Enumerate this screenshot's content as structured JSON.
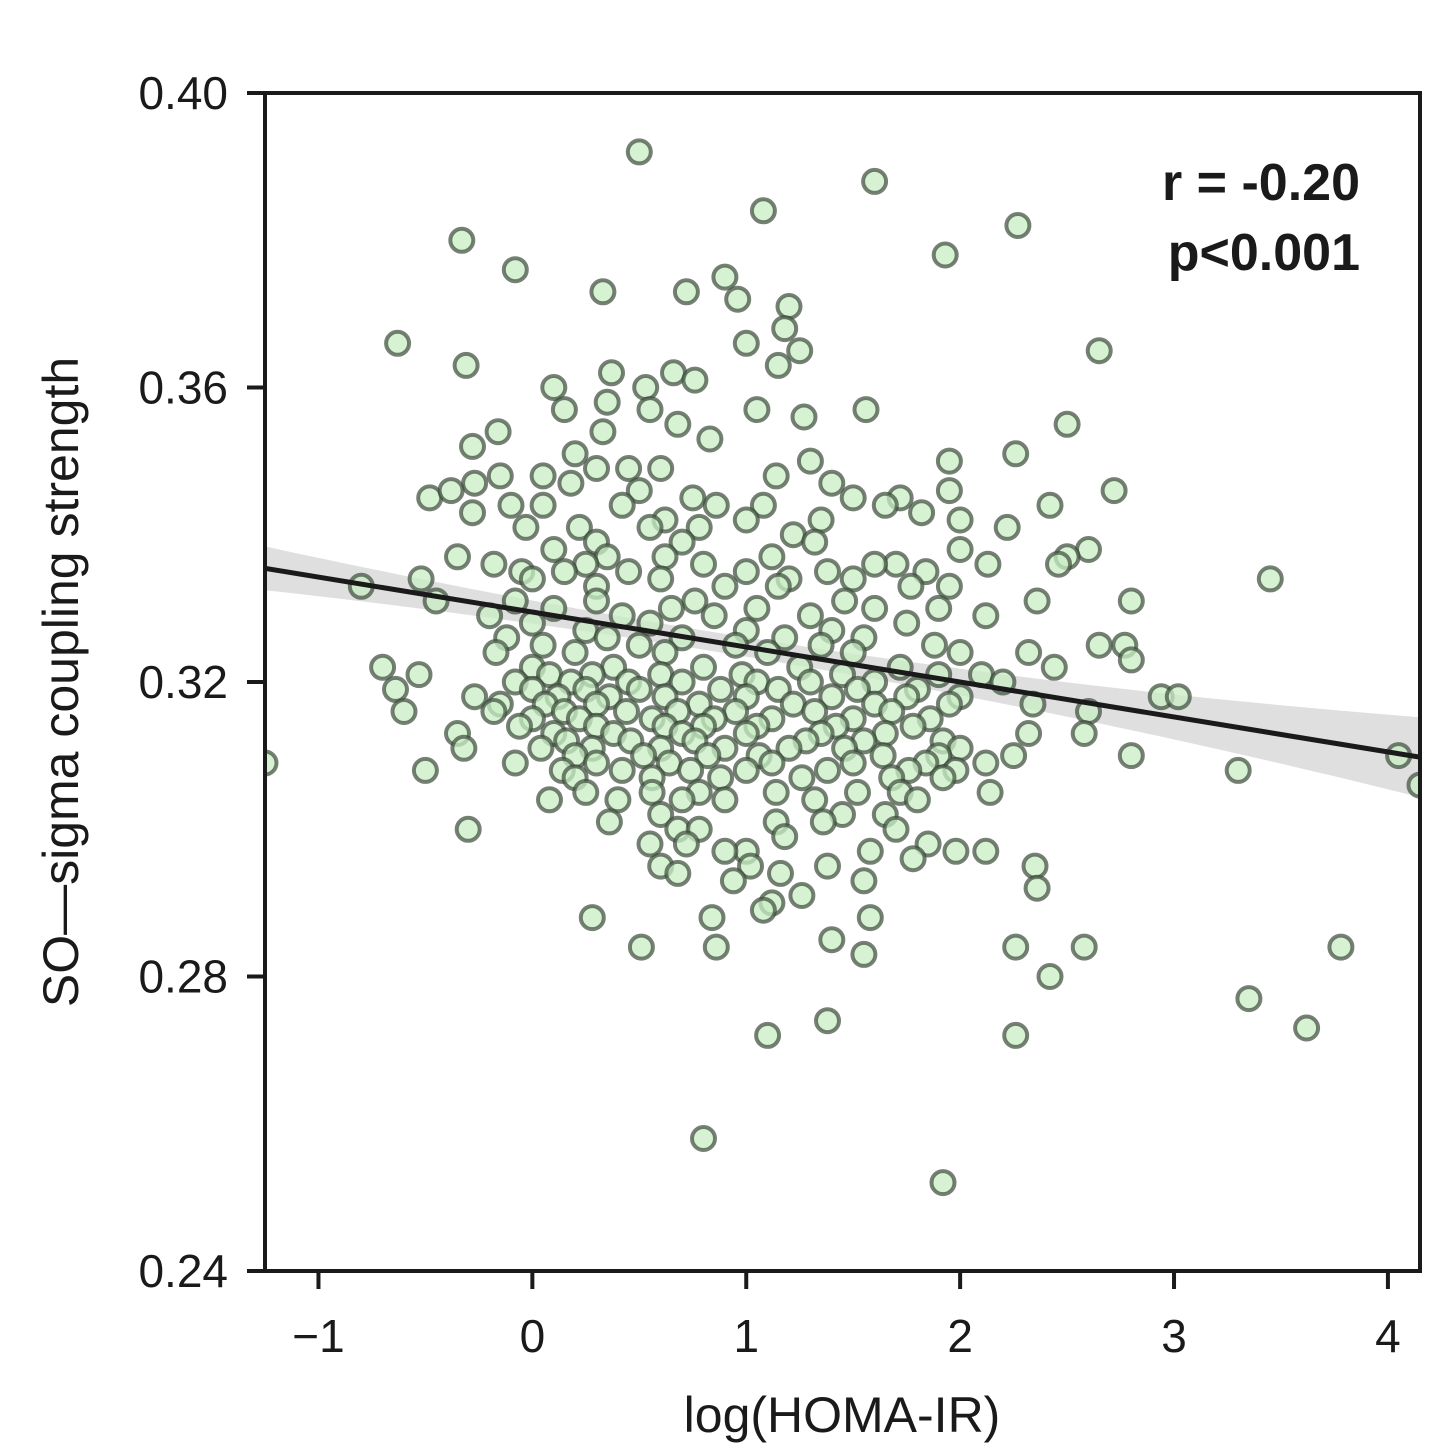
{
  "chart_data": {
    "type": "scatter",
    "title": "",
    "xlabel": "log(HOMA-IR)",
    "ylabel": "SO—sigma coupling strength",
    "xlim": [
      -1.25,
      4.15
    ],
    "ylim": [
      0.24,
      0.4
    ],
    "xticks": [
      -1,
      0,
      1,
      2,
      3,
      4
    ],
    "xtick_labels": [
      "−1",
      "0",
      "1",
      "2",
      "3",
      "4"
    ],
    "yticks": [
      0.24,
      0.28,
      0.32,
      0.36,
      0.4
    ],
    "ytick_labels": [
      "0.24",
      "0.28",
      "0.32",
      "0.36",
      "0.40"
    ],
    "grid": false,
    "marker_fill": "#c8eec4",
    "marker_edge": "#3c4a3a",
    "annotation": {
      "r_text": "r = -0.20",
      "p_text": "p<0.001"
    },
    "regression": {
      "slope": -0.00475,
      "intercept": 0.3295,
      "ci_color": "#d9d9d9",
      "line_color": "#1a1a1a"
    },
    "points": [
      [
        0.5,
        0.392
      ],
      [
        1.6,
        0.388
      ],
      [
        1.08,
        0.384
      ],
      [
        2.27,
        0.382
      ],
      [
        -0.33,
        0.38
      ],
      [
        1.93,
        0.378
      ],
      [
        -0.08,
        0.376
      ],
      [
        0.9,
        0.375
      ],
      [
        0.33,
        0.373
      ],
      [
        0.72,
        0.373
      ],
      [
        0.96,
        0.372
      ],
      [
        1.2,
        0.371
      ],
      [
        1.18,
        0.368
      ],
      [
        -0.63,
        0.366
      ],
      [
        1.0,
        0.366
      ],
      [
        1.25,
        0.365
      ],
      [
        2.65,
        0.365
      ],
      [
        -0.31,
        0.363
      ],
      [
        0.37,
        0.362
      ],
      [
        0.66,
        0.362
      ],
      [
        1.15,
        0.363
      ],
      [
        0.76,
        0.361
      ],
      [
        0.1,
        0.36
      ],
      [
        0.53,
        0.36
      ],
      [
        0.35,
        0.358
      ],
      [
        1.05,
        0.357
      ],
      [
        1.56,
        0.357
      ],
      [
        0.15,
        0.357
      ],
      [
        0.55,
        0.357
      ],
      [
        1.27,
        0.356
      ],
      [
        2.5,
        0.355
      ],
      [
        0.68,
        0.355
      ],
      [
        -0.16,
        0.354
      ],
      [
        0.33,
        0.354
      ],
      [
        0.83,
        0.353
      ],
      [
        -0.28,
        0.352
      ],
      [
        0.2,
        0.351
      ],
      [
        2.26,
        0.351
      ],
      [
        1.95,
        0.35
      ],
      [
        0.45,
        0.349
      ],
      [
        1.3,
        0.35
      ],
      [
        0.6,
        0.349
      ],
      [
        -0.15,
        0.348
      ],
      [
        0.05,
        0.348
      ],
      [
        0.3,
        0.349
      ],
      [
        1.14,
        0.348
      ],
      [
        -0.27,
        0.347
      ],
      [
        0.18,
        0.347
      ],
      [
        0.5,
        0.346
      ],
      [
        1.4,
        0.347
      ],
      [
        1.95,
        0.346
      ],
      [
        2.72,
        0.346
      ],
      [
        -0.48,
        0.345
      ],
      [
        -0.38,
        0.346
      ],
      [
        0.75,
        0.345
      ],
      [
        1.5,
        0.345
      ],
      [
        1.72,
        0.345
      ],
      [
        0.05,
        0.344
      ],
      [
        -0.1,
        0.344
      ],
      [
        0.42,
        0.344
      ],
      [
        0.86,
        0.344
      ],
      [
        1.08,
        0.344
      ],
      [
        1.65,
        0.344
      ],
      [
        2.42,
        0.344
      ],
      [
        -0.28,
        0.343
      ],
      [
        0.62,
        0.342
      ],
      [
        1.0,
        0.342
      ],
      [
        1.35,
        0.342
      ],
      [
        1.82,
        0.343
      ],
      [
        2.0,
        0.342
      ],
      [
        0.22,
        0.341
      ],
      [
        0.55,
        0.341
      ],
      [
        0.78,
        0.341
      ],
      [
        -0.03,
        0.341
      ],
      [
        2.22,
        0.341
      ],
      [
        1.22,
        0.34
      ],
      [
        0.3,
        0.339
      ],
      [
        0.7,
        0.339
      ],
      [
        1.32,
        0.339
      ],
      [
        2.0,
        0.338
      ],
      [
        0.1,
        0.338
      ],
      [
        2.6,
        0.338
      ],
      [
        -0.35,
        0.337
      ],
      [
        0.35,
        0.337
      ],
      [
        0.62,
        0.337
      ],
      [
        1.12,
        0.337
      ],
      [
        1.7,
        0.336
      ],
      [
        2.5,
        0.337
      ],
      [
        -0.18,
        0.336
      ],
      [
        0.25,
        0.336
      ],
      [
        0.8,
        0.336
      ],
      [
        1.6,
        0.336
      ],
      [
        2.46,
        0.336
      ],
      [
        2.13,
        0.336
      ],
      [
        -0.05,
        0.335
      ],
      [
        0.15,
        0.335
      ],
      [
        0.45,
        0.335
      ],
      [
        1.0,
        0.335
      ],
      [
        1.38,
        0.335
      ],
      [
        1.84,
        0.335
      ],
      [
        -0.52,
        0.334
      ],
      [
        0.0,
        0.334
      ],
      [
        0.6,
        0.334
      ],
      [
        1.2,
        0.334
      ],
      [
        1.5,
        0.334
      ],
      [
        3.45,
        0.334
      ],
      [
        -0.8,
        0.333
      ],
      [
        0.3,
        0.333
      ],
      [
        0.9,
        0.333
      ],
      [
        1.15,
        0.333
      ],
      [
        1.77,
        0.333
      ],
      [
        1.95,
        0.333
      ],
      [
        -0.45,
        0.331
      ],
      [
        -0.08,
        0.331
      ],
      [
        0.3,
        0.331
      ],
      [
        0.76,
        0.331
      ],
      [
        1.46,
        0.331
      ],
      [
        2.36,
        0.331
      ],
      [
        2.8,
        0.331
      ],
      [
        0.1,
        0.33
      ],
      [
        0.65,
        0.33
      ],
      [
        1.05,
        0.33
      ],
      [
        1.6,
        0.33
      ],
      [
        1.9,
        0.33
      ],
      [
        -0.2,
        0.329
      ],
      [
        0.42,
        0.329
      ],
      [
        0.85,
        0.329
      ],
      [
        1.3,
        0.329
      ],
      [
        1.75,
        0.328
      ],
      [
        2.12,
        0.329
      ],
      [
        0.0,
        0.328
      ],
      [
        0.55,
        0.328
      ],
      [
        1.0,
        0.327
      ],
      [
        1.4,
        0.327
      ],
      [
        0.25,
        0.327
      ],
      [
        -0.12,
        0.326
      ],
      [
        0.7,
        0.326
      ],
      [
        1.18,
        0.326
      ],
      [
        1.55,
        0.326
      ],
      [
        0.35,
        0.326
      ],
      [
        0.05,
        0.325
      ],
      [
        0.5,
        0.325
      ],
      [
        0.95,
        0.325
      ],
      [
        1.35,
        0.325
      ],
      [
        1.88,
        0.325
      ],
      [
        2.65,
        0.325
      ],
      [
        2.77,
        0.325
      ],
      [
        -0.17,
        0.324
      ],
      [
        0.2,
        0.324
      ],
      [
        0.62,
        0.324
      ],
      [
        1.1,
        0.324
      ],
      [
        1.5,
        0.324
      ],
      [
        2.0,
        0.324
      ],
      [
        2.32,
        0.324
      ],
      [
        -0.7,
        0.322
      ],
      [
        0.0,
        0.322
      ],
      [
        0.38,
        0.322
      ],
      [
        0.8,
        0.322
      ],
      [
        1.25,
        0.322
      ],
      [
        1.72,
        0.322
      ],
      [
        2.44,
        0.322
      ],
      [
        2.8,
        0.323
      ],
      [
        -0.53,
        0.321
      ],
      [
        0.08,
        0.321
      ],
      [
        0.28,
        0.321
      ],
      [
        0.6,
        0.321
      ],
      [
        0.98,
        0.321
      ],
      [
        1.45,
        0.321
      ],
      [
        1.9,
        0.321
      ],
      [
        2.1,
        0.321
      ],
      [
        -0.08,
        0.32
      ],
      [
        0.18,
        0.32
      ],
      [
        0.45,
        0.32
      ],
      [
        0.7,
        0.32
      ],
      [
        1.05,
        0.32
      ],
      [
        1.3,
        0.32
      ],
      [
        1.6,
        0.32
      ],
      [
        2.2,
        0.32
      ],
      [
        -0.64,
        0.319
      ],
      [
        0.0,
        0.319
      ],
      [
        0.25,
        0.319
      ],
      [
        0.5,
        0.319
      ],
      [
        0.88,
        0.319
      ],
      [
        1.15,
        0.319
      ],
      [
        1.52,
        0.319
      ],
      [
        1.8,
        0.319
      ],
      [
        -0.27,
        0.318
      ],
      [
        0.12,
        0.318
      ],
      [
        0.36,
        0.318
      ],
      [
        0.62,
        0.318
      ],
      [
        1.0,
        0.318
      ],
      [
        1.4,
        0.318
      ],
      [
        1.75,
        0.318
      ],
      [
        2.0,
        0.318
      ],
      [
        2.94,
        0.318
      ],
      [
        3.02,
        0.318
      ],
      [
        -0.15,
        0.317
      ],
      [
        0.06,
        0.317
      ],
      [
        0.3,
        0.317
      ],
      [
        0.78,
        0.317
      ],
      [
        1.22,
        0.317
      ],
      [
        1.6,
        0.317
      ],
      [
        2.34,
        0.317
      ],
      [
        1.95,
        0.317
      ],
      [
        -0.6,
        0.316
      ],
      [
        -0.18,
        0.316
      ],
      [
        0.15,
        0.316
      ],
      [
        0.44,
        0.316
      ],
      [
        0.68,
        0.316
      ],
      [
        0.95,
        0.316
      ],
      [
        1.32,
        0.316
      ],
      [
        1.68,
        0.316
      ],
      [
        2.6,
        0.316
      ],
      [
        0.0,
        0.315
      ],
      [
        0.22,
        0.315
      ],
      [
        0.56,
        0.315
      ],
      [
        0.85,
        0.315
      ],
      [
        1.12,
        0.315
      ],
      [
        1.5,
        0.315
      ],
      [
        1.86,
        0.315
      ],
      [
        -0.06,
        0.314
      ],
      [
        0.3,
        0.314
      ],
      [
        0.62,
        0.314
      ],
      [
        0.8,
        0.314
      ],
      [
        1.05,
        0.314
      ],
      [
        1.42,
        0.314
      ],
      [
        1.78,
        0.314
      ],
      [
        -0.35,
        0.313
      ],
      [
        0.1,
        0.313
      ],
      [
        0.38,
        0.313
      ],
      [
        0.7,
        0.313
      ],
      [
        1.0,
        0.313
      ],
      [
        1.35,
        0.313
      ],
      [
        1.65,
        0.313
      ],
      [
        2.32,
        0.313
      ],
      [
        2.58,
        0.313
      ],
      [
        0.16,
        0.312
      ],
      [
        0.46,
        0.312
      ],
      [
        0.76,
        0.312
      ],
      [
        1.28,
        0.312
      ],
      [
        1.55,
        0.312
      ],
      [
        1.92,
        0.312
      ],
      [
        -0.32,
        0.311
      ],
      [
        0.04,
        0.311
      ],
      [
        0.28,
        0.311
      ],
      [
        0.6,
        0.311
      ],
      [
        0.9,
        0.311
      ],
      [
        1.2,
        0.311
      ],
      [
        1.46,
        0.311
      ],
      [
        2.0,
        0.311
      ],
      [
        0.2,
        0.31
      ],
      [
        0.52,
        0.31
      ],
      [
        0.82,
        0.31
      ],
      [
        1.06,
        0.31
      ],
      [
        1.64,
        0.31
      ],
      [
        1.9,
        0.31
      ],
      [
        2.25,
        0.31
      ],
      [
        2.8,
        0.31
      ],
      [
        4.05,
        0.31
      ],
      [
        -1.25,
        0.309
      ],
      [
        -0.08,
        0.309
      ],
      [
        0.3,
        0.309
      ],
      [
        0.64,
        0.309
      ],
      [
        1.12,
        0.309
      ],
      [
        1.5,
        0.309
      ],
      [
        1.84,
        0.309
      ],
      [
        2.12,
        0.309
      ],
      [
        -0.5,
        0.308
      ],
      [
        0.14,
        0.308
      ],
      [
        0.42,
        0.308
      ],
      [
        0.74,
        0.308
      ],
      [
        1.0,
        0.308
      ],
      [
        1.38,
        0.308
      ],
      [
        1.76,
        0.308
      ],
      [
        1.98,
        0.308
      ],
      [
        3.3,
        0.308
      ],
      [
        0.2,
        0.307
      ],
      [
        0.56,
        0.307
      ],
      [
        0.88,
        0.307
      ],
      [
        1.26,
        0.307
      ],
      [
        1.68,
        0.307
      ],
      [
        1.92,
        0.307
      ],
      [
        0.25,
        0.305
      ],
      [
        0.56,
        0.305
      ],
      [
        0.78,
        0.305
      ],
      [
        1.14,
        0.305
      ],
      [
        1.52,
        0.305
      ],
      [
        1.72,
        0.305
      ],
      [
        2.14,
        0.305
      ],
      [
        4.15,
        0.306
      ],
      [
        0.08,
        0.304
      ],
      [
        0.4,
        0.304
      ],
      [
        0.7,
        0.304
      ],
      [
        0.9,
        0.304
      ],
      [
        1.32,
        0.304
      ],
      [
        1.8,
        0.304
      ],
      [
        0.6,
        0.302
      ],
      [
        1.45,
        0.302
      ],
      [
        1.65,
        0.302
      ],
      [
        0.36,
        0.301
      ],
      [
        0.68,
        0.3
      ],
      [
        1.14,
        0.301
      ],
      [
        -0.3,
        0.3
      ],
      [
        0.78,
        0.3
      ],
      [
        1.36,
        0.301
      ],
      [
        1.7,
        0.3
      ],
      [
        1.18,
        0.299
      ],
      [
        0.55,
        0.298
      ],
      [
        0.72,
        0.298
      ],
      [
        1.0,
        0.297
      ],
      [
        1.85,
        0.298
      ],
      [
        1.98,
        0.297
      ],
      [
        2.12,
        0.297
      ],
      [
        0.9,
        0.297
      ],
      [
        1.58,
        0.297
      ],
      [
        1.78,
        0.296
      ],
      [
        0.6,
        0.295
      ],
      [
        1.02,
        0.295
      ],
      [
        1.38,
        0.295
      ],
      [
        2.35,
        0.295
      ],
      [
        0.68,
        0.294
      ],
      [
        0.94,
        0.293
      ],
      [
        1.16,
        0.294
      ],
      [
        1.55,
        0.293
      ],
      [
        2.36,
        0.292
      ],
      [
        1.12,
        0.29
      ],
      [
        1.26,
        0.291
      ],
      [
        1.08,
        0.289
      ],
      [
        0.28,
        0.288
      ],
      [
        0.84,
        0.288
      ],
      [
        1.58,
        0.288
      ],
      [
        0.51,
        0.284
      ],
      [
        0.86,
        0.284
      ],
      [
        1.4,
        0.285
      ],
      [
        1.55,
        0.283
      ],
      [
        2.26,
        0.284
      ],
      [
        2.58,
        0.284
      ],
      [
        3.78,
        0.284
      ],
      [
        2.42,
        0.28
      ],
      [
        3.35,
        0.277
      ],
      [
        1.38,
        0.274
      ],
      [
        3.62,
        0.273
      ],
      [
        1.1,
        0.272
      ],
      [
        2.26,
        0.272
      ],
      [
        0.8,
        0.258
      ],
      [
        1.92,
        0.252
      ]
    ]
  }
}
